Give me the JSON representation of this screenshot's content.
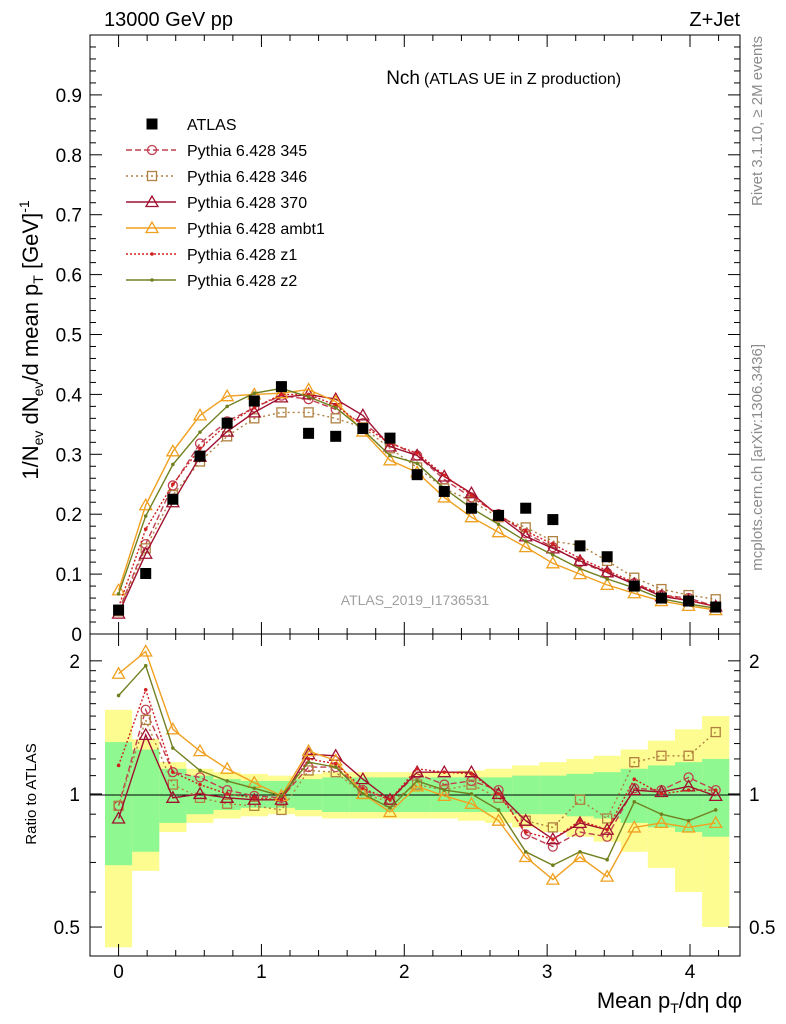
{
  "header": {
    "left": "13000 GeV pp",
    "right": "Z+Jet"
  },
  "side_labels": {
    "rivet": "Rivet 3.1.10, ≥ 2M events",
    "mcplots": "mcplots.cern.ch [arXiv:1306.3436]"
  },
  "colors": {
    "band_inner": "#90f890",
    "band_outer": "#fcfc90"
  },
  "chart_data": [
    {
      "type": "line",
      "title_main": "Nch",
      "title_sub": "(ATLAS UE in Z production)",
      "analysis_tag": "ATLAS_2019_I1736531",
      "ylabel": "1/N_ev dN_ev/d mean p_T [GeV]^-1",
      "ylim": [
        0,
        1.0
      ],
      "yticks": [
        "0",
        "0.1",
        "0.2",
        "0.3",
        "0.4",
        "0.5",
        "0.6",
        "0.7",
        "0.8",
        "0.9"
      ],
      "legend_position": "top-left",
      "x": [
        0.0,
        0.19,
        0.38,
        0.57,
        0.76,
        0.95,
        1.14,
        1.33,
        1.52,
        1.71,
        1.9,
        2.09,
        2.28,
        2.47,
        2.66,
        2.85,
        3.04,
        3.23,
        3.42,
        3.61,
        3.8,
        3.99,
        4.18
      ],
      "series": [
        {
          "name": "ATLAS",
          "color": "#000000",
          "marker": "square",
          "dash": "none",
          "values": [
            0.04,
            0.101,
            0.225,
            0.297,
            0.352,
            0.389,
            0.413,
            0.335,
            0.33,
            0.343,
            0.327,
            0.266,
            0.238,
            0.21,
            0.198,
            0.21,
            0.191,
            0.147,
            0.129,
            0.08,
            0.06,
            0.055,
            0.045
          ]
        },
        {
          "name": "Pythia 6.428 345",
          "color": "#c04050",
          "marker": "circle",
          "dash": "6,3",
          "values": [
            0.038,
            0.15,
            0.248,
            0.318,
            0.355,
            0.378,
            0.398,
            0.392,
            0.375,
            0.352,
            0.32,
            0.298,
            0.258,
            0.228,
            0.2,
            0.168,
            0.145,
            0.12,
            0.102,
            0.085,
            0.065,
            0.06,
            0.046
          ]
        },
        {
          "name": "Pythia 6.428 346",
          "color": "#b08040",
          "marker": "square-open",
          "dash": "2,3",
          "values": [
            0.038,
            0.143,
            0.232,
            0.288,
            0.33,
            0.36,
            0.37,
            0.37,
            0.36,
            0.345,
            0.31,
            0.278,
            0.243,
            0.222,
            0.195,
            0.178,
            0.155,
            0.148,
            0.122,
            0.094,
            0.075,
            0.065,
            0.058
          ]
        },
        {
          "name": "Pythia 6.428 370",
          "color": "#a01030",
          "marker": "triangle-open",
          "dash": "none",
          "values": [
            0.034,
            0.134,
            0.22,
            0.296,
            0.338,
            0.37,
            0.395,
            0.4,
            0.392,
            0.365,
            0.313,
            0.298,
            0.263,
            0.235,
            0.197,
            0.163,
            0.143,
            0.122,
            0.103,
            0.083,
            0.063,
            0.056,
            0.046
          ]
        },
        {
          "name": "Pythia 6.428 ambt1",
          "color": "#f0a020",
          "marker": "triangle-open",
          "dash": "none",
          "values": [
            0.073,
            0.215,
            0.305,
            0.365,
            0.397,
            0.4,
            0.402,
            0.408,
            0.388,
            0.338,
            0.29,
            0.27,
            0.228,
            0.195,
            0.17,
            0.145,
            0.118,
            0.1,
            0.082,
            0.068,
            0.055,
            0.047,
            0.04
          ]
        },
        {
          "name": "Pythia 6.428 z1",
          "color": "#d02020",
          "marker": "dot",
          "dash": "2,2",
          "values": [
            0.045,
            0.175,
            0.25,
            0.31,
            0.35,
            0.378,
            0.4,
            0.4,
            0.382,
            0.348,
            0.318,
            0.302,
            0.265,
            0.232,
            0.198,
            0.172,
            0.15,
            0.126,
            0.106,
            0.086,
            0.066,
            0.056,
            0.046
          ]
        },
        {
          "name": "Pythia 6.428 z2",
          "color": "#708020",
          "marker": "dot",
          "dash": "none",
          "values": [
            0.067,
            0.197,
            0.283,
            0.337,
            0.38,
            0.402,
            0.41,
            0.396,
            0.378,
            0.341,
            0.298,
            0.285,
            0.243,
            0.21,
            0.183,
            0.155,
            0.132,
            0.109,
            0.092,
            0.077,
            0.059,
            0.05,
            0.043
          ]
        }
      ]
    },
    {
      "type": "line",
      "ylabel": "Ratio to ATLAS",
      "yscale": "log",
      "ylim": [
        0.43,
        2.3
      ],
      "yticks_left": [
        "2",
        "1",
        "0.5"
      ],
      "yticks_right": [
        "2",
        "1",
        "0.5"
      ],
      "xlabel": "Mean p_T/dη dφ",
      "xlim": [
        -0.2,
        4.35
      ],
      "xticks": [
        "0",
        "1",
        "2",
        "3",
        "4"
      ],
      "band_inner_halfwidth": [
        0.31,
        0.26,
        0.14,
        0.1,
        0.08,
        0.07,
        0.07,
        0.08,
        0.09,
        0.09,
        0.09,
        0.09,
        0.09,
        0.09,
        0.09,
        0.1,
        0.1,
        0.11,
        0.12,
        0.14,
        0.16,
        0.18,
        0.2
      ],
      "band_outer_halfwidth": [
        0.55,
        0.33,
        0.18,
        0.14,
        0.12,
        0.11,
        0.1,
        0.11,
        0.12,
        0.12,
        0.12,
        0.12,
        0.12,
        0.13,
        0.14,
        0.16,
        0.18,
        0.2,
        0.22,
        0.26,
        0.32,
        0.4,
        0.5
      ],
      "series": [
        {
          "name": "Pythia 6.428 345",
          "values": [
            0.94,
            1.55,
            1.12,
            1.09,
            1.02,
            0.99,
            0.98,
            1.15,
            1.15,
            1.02,
            0.97,
            1.11,
            1.05,
            1.07,
            1.02,
            0.81,
            0.76,
            0.82,
            0.8,
            1.03,
            1.02,
            1.09,
            1.02
          ]
        },
        {
          "name": "Pythia 6.428 346",
          "values": [
            0.94,
            1.47,
            1.05,
            0.98,
            0.95,
            0.94,
            0.92,
            1.13,
            1.12,
            1.0,
            0.96,
            1.05,
            1.02,
            1.05,
            0.98,
            0.87,
            0.84,
            0.97,
            0.88,
            1.18,
            1.22,
            1.22,
            1.38
          ]
        },
        {
          "name": "Pythia 6.428 370",
          "values": [
            0.88,
            1.36,
            0.98,
            1.0,
            0.98,
            0.97,
            0.97,
            1.23,
            1.22,
            1.08,
            0.97,
            1.12,
            1.12,
            1.12,
            1.0,
            0.87,
            0.79,
            0.86,
            0.83,
            1.02,
            1.01,
            1.04,
            0.99
          ]
        },
        {
          "name": "Pythia 6.428 ambt1",
          "values": [
            1.87,
            2.1,
            1.4,
            1.25,
            1.14,
            1.06,
            0.99,
            1.25,
            1.19,
            1.0,
            0.91,
            1.04,
            0.99,
            0.95,
            0.87,
            0.72,
            0.64,
            0.72,
            0.65,
            0.84,
            0.86,
            0.84,
            0.86
          ]
        },
        {
          "name": "Pythia 6.428 z1",
          "values": [
            1.16,
            1.72,
            1.12,
            1.05,
            1.0,
            0.98,
            0.97,
            1.2,
            1.17,
            1.03,
            0.97,
            1.14,
            1.12,
            1.11,
            1.0,
            0.82,
            0.79,
            0.87,
            0.83,
            1.08,
            1.0,
            1.02,
            1.02
          ]
        },
        {
          "name": "Pythia 6.428 z2",
          "values": [
            1.67,
            1.95,
            1.27,
            1.13,
            1.07,
            1.03,
            0.99,
            1.18,
            1.15,
            1.0,
            0.93,
            1.07,
            1.02,
            1.0,
            0.92,
            0.74,
            0.69,
            0.74,
            0.71,
            0.96,
            0.9,
            0.87,
            0.92
          ]
        }
      ]
    }
  ]
}
